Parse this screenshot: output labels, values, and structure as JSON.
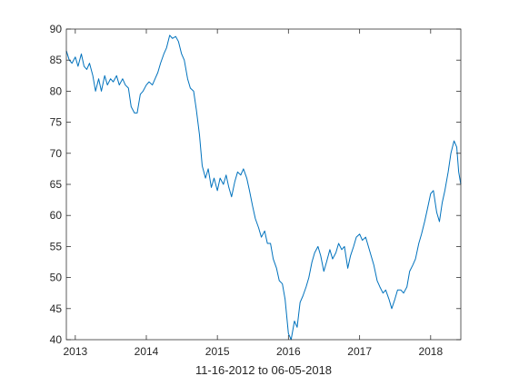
{
  "chart_data": {
    "type": "line",
    "title": "",
    "xlabel": "11-16-2012 to 06-05-2018",
    "ylabel": "",
    "xlim": [
      "2012-11-16",
      "2018-06-05"
    ],
    "ylim": [
      40,
      90
    ],
    "x_ticks": [
      {
        "date": "2013-01-01",
        "label": "2013"
      },
      {
        "date": "2014-01-01",
        "label": "2014"
      },
      {
        "date": "2015-01-01",
        "label": "2015"
      },
      {
        "date": "2016-01-01",
        "label": "2016"
      },
      {
        "date": "2017-01-01",
        "label": "2017"
      },
      {
        "date": "2018-01-01",
        "label": "2018"
      }
    ],
    "y_ticks": [
      40,
      45,
      50,
      55,
      60,
      65,
      70,
      75,
      80,
      85,
      90
    ],
    "grid": false,
    "legend": "none",
    "series": [
      {
        "color": "#0072BD",
        "points": [
          [
            "2012-11-16",
            86.5
          ],
          [
            "2012-12-01",
            85.0
          ],
          [
            "2012-12-15",
            84.5
          ],
          [
            "2013-01-01",
            85.5
          ],
          [
            "2013-01-15",
            84.0
          ],
          [
            "2013-02-01",
            86.0
          ],
          [
            "2013-02-15",
            84.0
          ],
          [
            "2013-03-01",
            83.5
          ],
          [
            "2013-03-15",
            84.5
          ],
          [
            "2013-04-01",
            82.5
          ],
          [
            "2013-04-15",
            80.0
          ],
          [
            "2013-05-01",
            82.0
          ],
          [
            "2013-05-15",
            80.0
          ],
          [
            "2013-06-01",
            82.5
          ],
          [
            "2013-06-15",
            81.0
          ],
          [
            "2013-07-01",
            82.0
          ],
          [
            "2013-07-15",
            81.5
          ],
          [
            "2013-08-01",
            82.5
          ],
          [
            "2013-08-15",
            81.0
          ],
          [
            "2013-09-01",
            82.0
          ],
          [
            "2013-09-15",
            81.0
          ],
          [
            "2013-10-01",
            80.5
          ],
          [
            "2013-10-15",
            77.5
          ],
          [
            "2013-11-01",
            76.5
          ],
          [
            "2013-11-15",
            76.5
          ],
          [
            "2013-12-01",
            79.5
          ],
          [
            "2013-12-15",
            80.0
          ],
          [
            "2014-01-01",
            81.0
          ],
          [
            "2014-01-15",
            81.5
          ],
          [
            "2014-02-01",
            81.0
          ],
          [
            "2014-02-15",
            82.0
          ],
          [
            "2014-03-01",
            83.0
          ],
          [
            "2014-03-15",
            84.5
          ],
          [
            "2014-04-01",
            86.0
          ],
          [
            "2014-04-15",
            87.0
          ],
          [
            "2014-05-01",
            89.0
          ],
          [
            "2014-05-15",
            88.5
          ],
          [
            "2014-06-01",
            88.8
          ],
          [
            "2014-06-15",
            88.0
          ],
          [
            "2014-07-01",
            86.0
          ],
          [
            "2014-07-15",
            85.0
          ],
          [
            "2014-08-01",
            82.0
          ],
          [
            "2014-08-15",
            80.5
          ],
          [
            "2014-09-01",
            80.0
          ],
          [
            "2014-09-15",
            77.0
          ],
          [
            "2014-10-01",
            73.0
          ],
          [
            "2014-10-15",
            68.0
          ],
          [
            "2014-11-01",
            66.0
          ],
          [
            "2014-11-15",
            67.5
          ],
          [
            "2014-12-01",
            64.5
          ],
          [
            "2014-12-15",
            66.0
          ],
          [
            "2015-01-01",
            64.0
          ],
          [
            "2015-01-15",
            66.0
          ],
          [
            "2015-02-01",
            65.0
          ],
          [
            "2015-02-15",
            66.5
          ],
          [
            "2015-03-01",
            64.5
          ],
          [
            "2015-03-15",
            63.0
          ],
          [
            "2015-04-01",
            65.5
          ],
          [
            "2015-04-15",
            67.0
          ],
          [
            "2015-05-01",
            66.5
          ],
          [
            "2015-05-15",
            67.5
          ],
          [
            "2015-06-01",
            66.0
          ],
          [
            "2015-06-15",
            64.0
          ],
          [
            "2015-07-01",
            61.5
          ],
          [
            "2015-07-15",
            59.5
          ],
          [
            "2015-08-01",
            58.0
          ],
          [
            "2015-08-15",
            56.5
          ],
          [
            "2015-09-01",
            57.5
          ],
          [
            "2015-09-15",
            55.5
          ],
          [
            "2015-10-01",
            55.5
          ],
          [
            "2015-10-15",
            53.0
          ],
          [
            "2015-11-01",
            51.5
          ],
          [
            "2015-11-15",
            49.5
          ],
          [
            "2015-12-01",
            49.0
          ],
          [
            "2015-12-15",
            46.5
          ],
          [
            "2016-01-01",
            41.0
          ],
          [
            "2016-01-15",
            40.0
          ],
          [
            "2016-02-01",
            43.0
          ],
          [
            "2016-02-15",
            42.0
          ],
          [
            "2016-03-01",
            46.0
          ],
          [
            "2016-03-15",
            47.0
          ],
          [
            "2016-04-01",
            48.5
          ],
          [
            "2016-04-15",
            50.0
          ],
          [
            "2016-05-01",
            52.5
          ],
          [
            "2016-05-15",
            54.0
          ],
          [
            "2016-06-01",
            55.0
          ],
          [
            "2016-06-15",
            53.5
          ],
          [
            "2016-07-01",
            51.0
          ],
          [
            "2016-07-15",
            52.5
          ],
          [
            "2016-08-01",
            54.5
          ],
          [
            "2016-08-15",
            53.0
          ],
          [
            "2016-09-01",
            54.0
          ],
          [
            "2016-09-15",
            55.5
          ],
          [
            "2016-10-01",
            54.5
          ],
          [
            "2016-10-15",
            55.0
          ],
          [
            "2016-11-01",
            51.5
          ],
          [
            "2016-11-15",
            53.5
          ],
          [
            "2016-12-01",
            55.0
          ],
          [
            "2016-12-15",
            56.5
          ],
          [
            "2017-01-01",
            57.0
          ],
          [
            "2017-01-15",
            56.0
          ],
          [
            "2017-02-01",
            56.5
          ],
          [
            "2017-02-15",
            55.0
          ],
          [
            "2017-03-01",
            53.5
          ],
          [
            "2017-03-15",
            52.0
          ],
          [
            "2017-04-01",
            49.5
          ],
          [
            "2017-04-15",
            48.5
          ],
          [
            "2017-05-01",
            47.5
          ],
          [
            "2017-05-15",
            48.0
          ],
          [
            "2017-06-01",
            46.5
          ],
          [
            "2017-06-15",
            45.0
          ],
          [
            "2017-07-01",
            46.5
          ],
          [
            "2017-07-15",
            48.0
          ],
          [
            "2017-08-01",
            48.0
          ],
          [
            "2017-08-15",
            47.5
          ],
          [
            "2017-09-01",
            48.5
          ],
          [
            "2017-09-15",
            51.0
          ],
          [
            "2017-10-01",
            52.0
          ],
          [
            "2017-10-15",
            53.0
          ],
          [
            "2017-11-01",
            55.5
          ],
          [
            "2017-11-15",
            57.0
          ],
          [
            "2017-12-01",
            59.0
          ],
          [
            "2017-12-15",
            61.0
          ],
          [
            "2018-01-01",
            63.5
          ],
          [
            "2018-01-15",
            64.0
          ],
          [
            "2018-02-01",
            60.5
          ],
          [
            "2018-02-15",
            59.0
          ],
          [
            "2018-03-01",
            62.0
          ],
          [
            "2018-03-15",
            64.0
          ],
          [
            "2018-04-01",
            67.0
          ],
          [
            "2018-04-15",
            70.0
          ],
          [
            "2018-05-01",
            72.0
          ],
          [
            "2018-05-15",
            71.0
          ],
          [
            "2018-05-25",
            67.0
          ],
          [
            "2018-06-05",
            65.0
          ]
        ]
      }
    ]
  }
}
